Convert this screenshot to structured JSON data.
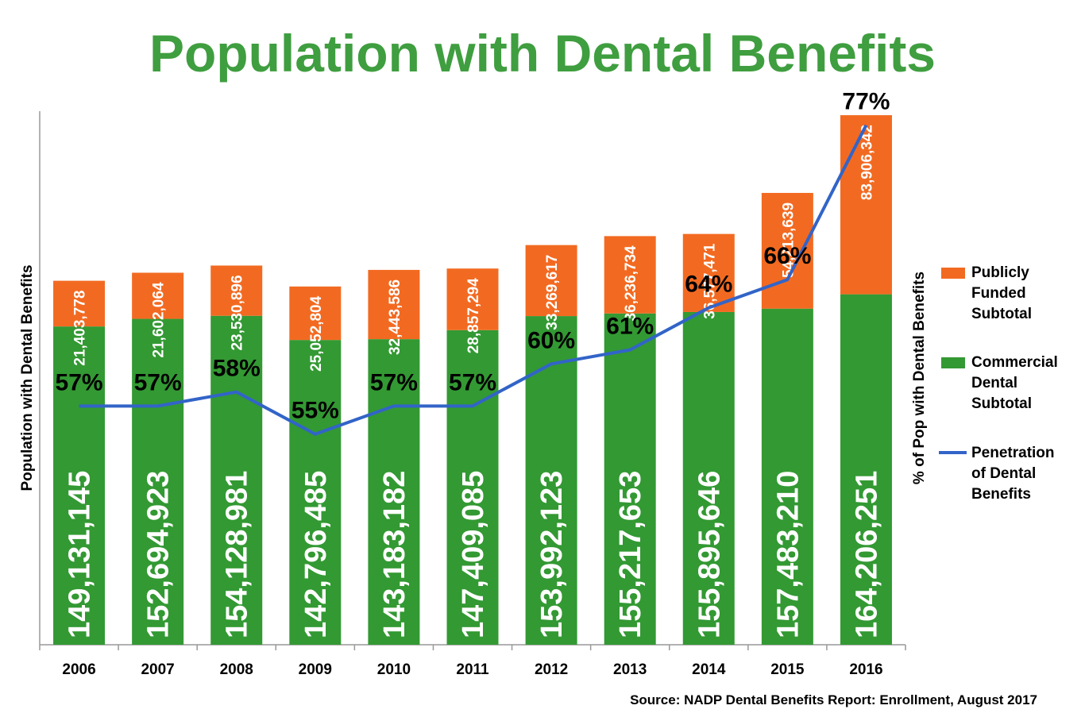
{
  "chart_data": {
    "type": "bar",
    "title": "Population with Dental Benefits",
    "categories": [
      "2006",
      "2007",
      "2008",
      "2009",
      "2010",
      "2011",
      "2012",
      "2013",
      "2014",
      "2015",
      "2016"
    ],
    "series": [
      {
        "name": "Commercial Dental Subtotal",
        "legend_lines": [
          "Commercial",
          "Dental",
          "Subtotal"
        ],
        "color": "#339933",
        "values": [
          149131145,
          152694923,
          154128981,
          142796485,
          143183182,
          147409085,
          153992123,
          155217653,
          155895646,
          157483210,
          164206251
        ],
        "labels": [
          "149,131,145",
          "152,694,923",
          "154,128,981",
          "142,796,485",
          "143,183,182",
          "147,409,085",
          "153,992,123",
          "155,217,653",
          "155,895,646",
          "157,483,210",
          "164,206,251"
        ]
      },
      {
        "name": "Publicly Funded Subtotal",
        "legend_lines": [
          "Publicly",
          "Funded",
          "Subtotal"
        ],
        "color": "#f26a21",
        "values": [
          21403778,
          21602064,
          23530896,
          25052804,
          32443586,
          28857294,
          33269617,
          36236734,
          36577471,
          54213639,
          83906342
        ],
        "labels": [
          "21,403,778",
          "21,602,064",
          "23,530,896",
          "25,052,804",
          "32,443,586",
          "28,857,294",
          "33,269,617",
          "36,236,734",
          "36,577,471",
          "54,213,639",
          "83,906,342"
        ]
      },
      {
        "name": "Penetration of Dental Benefits",
        "legend_lines": [
          "Penetration",
          "of Dental",
          "Benefits"
        ],
        "type": "line",
        "color": "#3264c8",
        "values": [
          57,
          57,
          58,
          55,
          57,
          57,
          60,
          61,
          64,
          66,
          77
        ],
        "labels": [
          "57%",
          "57%",
          "58%",
          "55%",
          "57%",
          "57%",
          "60%",
          "61%",
          "64%",
          "66%",
          "77%"
        ]
      }
    ],
    "ylabel": "Population with Dental Benefits",
    "y2label": "% of Pop with Dental Benefits",
    "ylim": [
      0,
      250000000
    ],
    "y2lim": [
      40,
      78
    ],
    "legend_position": "right",
    "source": "Source: NADP Dental Benefits Report: Enrollment, August 2017"
  }
}
